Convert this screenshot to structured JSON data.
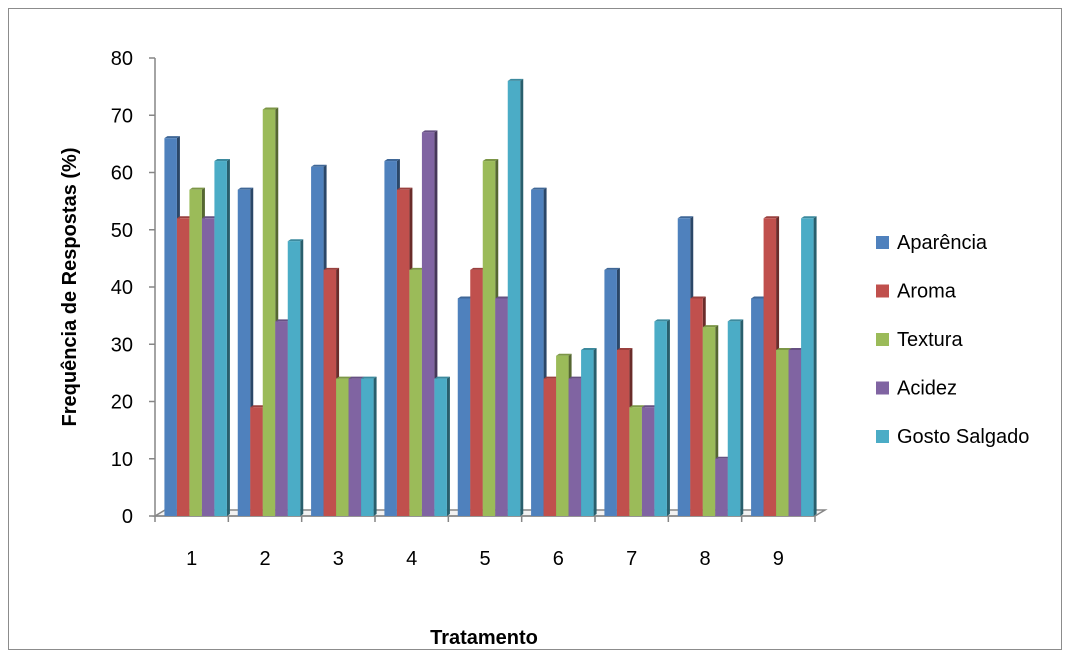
{
  "chart_data": {
    "type": "bar",
    "title": "",
    "xlabel": "Tratamento",
    "ylabel": "Frequência de Respostas (%)",
    "ylim": [
      0,
      80
    ],
    "yticks": [
      0,
      10,
      20,
      30,
      40,
      50,
      60,
      70,
      80
    ],
    "categories": [
      "1",
      "2",
      "3",
      "4",
      "5",
      "6",
      "7",
      "8",
      "9"
    ],
    "legend_position": "right",
    "grid": false,
    "style": "3d-clustered-column",
    "series": [
      {
        "name": "Aparência",
        "color": "#4F81BD",
        "values": [
          66,
          57,
          61,
          62,
          38,
          57,
          43,
          52,
          38
        ]
      },
      {
        "name": "Aroma",
        "color": "#C0504D",
        "values": [
          52,
          19,
          43,
          57,
          43,
          24,
          29,
          38,
          52
        ]
      },
      {
        "name": "Textura",
        "color": "#9BBB59",
        "values": [
          57,
          71,
          24,
          43,
          62,
          28,
          19,
          33,
          29
        ]
      },
      {
        "name": "Acidez",
        "color": "#8064A2",
        "values": [
          52,
          34,
          24,
          67,
          38,
          24,
          19,
          10,
          29
        ]
      },
      {
        "name": "Gosto Salgado",
        "color": "#4BACC6",
        "values": [
          62,
          48,
          24,
          24,
          76,
          29,
          34,
          34,
          52
        ]
      }
    ]
  }
}
